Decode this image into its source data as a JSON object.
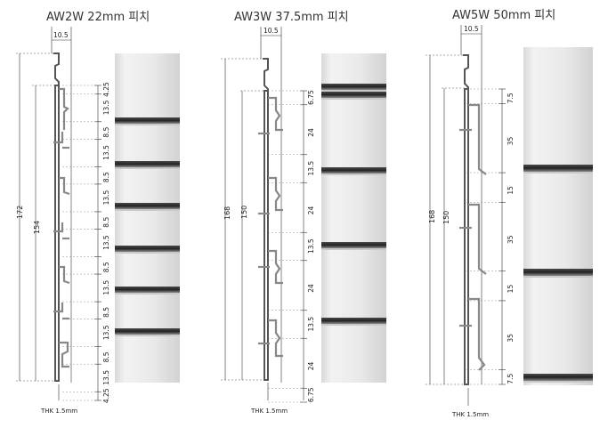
{
  "panels": [
    {
      "title": "AW2W  22mm  피치",
      "top_width": "10.5",
      "total_height": "172",
      "inner_height": "154",
      "thk": "THK 1.5mm",
      "segments": [
        "4.25",
        "13.5",
        "8.5",
        "13.5",
        "8.5",
        "13.5",
        "8.5",
        "13.5",
        "8.5",
        "13.5",
        "8.5",
        "13.5",
        "8.5",
        "13.5",
        "4.25"
      ]
    },
    {
      "title": "AW3W  37.5mm  피치",
      "top_width": "10.5",
      "total_height": "168",
      "inner_height": "150",
      "thk": "THK 1.5mm",
      "segments": [
        "6.75",
        "24",
        "13.5",
        "24",
        "13.5",
        "24",
        "13.5",
        "24",
        "6.75"
      ]
    },
    {
      "title": "AW5W  50mm  피치",
      "top_width": "10.5",
      "total_height": "168",
      "inner_height": "150",
      "thk": "THK 1.5mm",
      "segments": [
        "7.5",
        "35",
        "15",
        "35",
        "15",
        "35",
        "7.5"
      ]
    }
  ]
}
